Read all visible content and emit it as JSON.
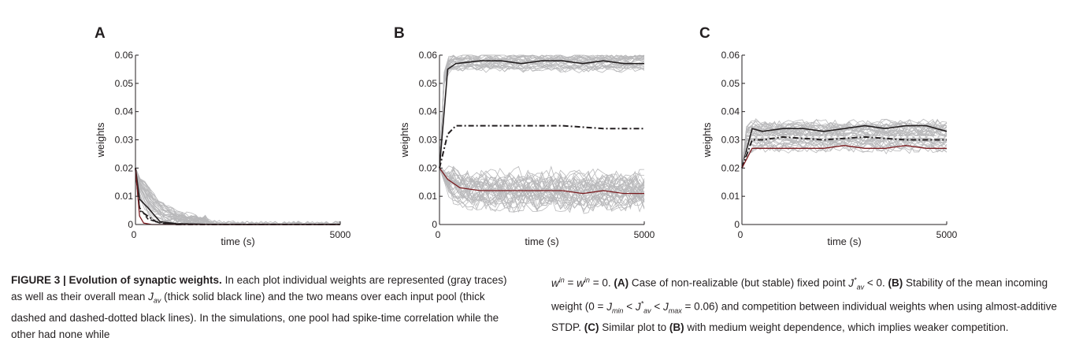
{
  "figure": {
    "caption_title": "FIGURE 3 | Evolution of synaptic weights.",
    "caption_p1": "In each plot individual weights are represented (gray traces) as well as their overall mean",
    "caption_p2": "(thick solid black line) and the two means over each input pool (thick dashed and dashed-dotted black lines). In the simulations, one pool had spike-time correlation while the other had none while",
    "caption_p3": "= 0.",
    "caption_A_tag": "(A)",
    "caption_A": "Case of non-realizable (but stable) fixed point",
    "caption_A_end": "< 0.",
    "caption_B_tag": "(B)",
    "caption_B": "Stability of the mean incoming weight (0 =",
    "caption_B2": "= 0.06) and competition between individual weights when using almost-additive STDP.",
    "caption_C_tag": "(C)",
    "caption_C": "Similar plot to",
    "caption_C_ref": "(B)",
    "caption_C2": "with medium weight dependence, which implies weaker competition."
  },
  "colors": {
    "gray": "#b9b9bb",
    "black": "#231f20",
    "red": "#7a1a1e"
  },
  "chart_data": [
    {
      "panel": "A",
      "type": "line",
      "xlabel": "time (s)",
      "ylabel": "weights",
      "xlim": [
        0,
        5000
      ],
      "ylim": [
        0,
        0.06
      ],
      "xticks": [
        "0",
        "5000"
      ],
      "yticks": [
        "0",
        "0.01",
        "0.02",
        "0.03",
        "0.04",
        "0.05",
        "0.06"
      ],
      "gray_traces": {
        "count": 30,
        "start": 0.02,
        "description": "individual weights decaying to 0"
      },
      "series": [
        {
          "style": "solid-black",
          "x": [
            0,
            100,
            300,
            600,
            1000,
            2000,
            5000
          ],
          "values": [
            0.02,
            0.009,
            0.006,
            0.001,
            0.0003,
            0.0,
            0.0
          ]
        },
        {
          "style": "dashed-black",
          "x": [
            0,
            100,
            300,
            600,
            1000,
            2000,
            5000
          ],
          "values": [
            0.02,
            0.006,
            0.002,
            0.0005,
            0.0,
            0.0,
            0.0
          ]
        },
        {
          "style": "dashdot-black",
          "x": [
            0,
            100,
            300,
            500,
            1000,
            5000
          ],
          "values": [
            0.02,
            0.005,
            0.003,
            0.001,
            0.0,
            0.0
          ]
        },
        {
          "style": "solid-red",
          "x": [
            0,
            100,
            200,
            400,
            5000
          ],
          "values": [
            0.02,
            0.003,
            0.0005,
            0.0,
            0.0
          ]
        }
      ]
    },
    {
      "panel": "B",
      "type": "line",
      "xlabel": "time (s)",
      "ylabel": "weights",
      "xlim": [
        0,
        5000
      ],
      "ylim": [
        0,
        0.06
      ],
      "xticks": [
        "0",
        "5000"
      ],
      "yticks": [
        "0",
        "0.01",
        "0.02",
        "0.03",
        "0.04",
        "0.05",
        "0.06"
      ],
      "gray_traces": {
        "count": 60,
        "description": "upper band ~0.055-0.06, lower band ~0.005-0.02"
      },
      "series": [
        {
          "style": "solid-black",
          "x": [
            0,
            200,
            400,
            1000,
            1500,
            2000,
            2500,
            3000,
            3500,
            4000,
            4500,
            5000
          ],
          "values": [
            0.02,
            0.055,
            0.057,
            0.058,
            0.058,
            0.057,
            0.058,
            0.058,
            0.057,
            0.058,
            0.057,
            0.057
          ]
        },
        {
          "style": "dashdot-black",
          "x": [
            0,
            200,
            400,
            1000,
            2000,
            3000,
            4000,
            5000
          ],
          "values": [
            0.02,
            0.032,
            0.035,
            0.035,
            0.035,
            0.035,
            0.034,
            0.034
          ]
        },
        {
          "style": "solid-red",
          "x": [
            0,
            200,
            500,
            1000,
            1500,
            2000,
            2500,
            3000,
            3500,
            4000,
            4500,
            5000
          ],
          "values": [
            0.02,
            0.016,
            0.013,
            0.012,
            0.012,
            0.012,
            0.012,
            0.012,
            0.011,
            0.012,
            0.011,
            0.011
          ]
        }
      ]
    },
    {
      "panel": "C",
      "type": "line",
      "xlabel": "time (s)",
      "ylabel": "weights",
      "xlim": [
        0,
        5000
      ],
      "ylim": [
        0,
        0.06
      ],
      "xticks": [
        "0",
        "5000"
      ],
      "yticks": [
        "0",
        "0.01",
        "0.02",
        "0.03",
        "0.04",
        "0.05",
        "0.06"
      ],
      "gray_traces": {
        "count": 40,
        "description": "individual weights in band ~0.025-0.038"
      },
      "series": [
        {
          "style": "solid-black",
          "x": [
            0,
            250,
            500,
            1000,
            1500,
            2000,
            2500,
            3000,
            3500,
            4000,
            4500,
            5000
          ],
          "values": [
            0.02,
            0.034,
            0.033,
            0.034,
            0.034,
            0.033,
            0.034,
            0.035,
            0.034,
            0.035,
            0.035,
            0.033
          ]
        },
        {
          "style": "dashed-white",
          "x": [
            0,
            250,
            500,
            1000,
            2000,
            3000,
            4000,
            5000
          ],
          "values": [
            0.02,
            0.031,
            0.031,
            0.031,
            0.031,
            0.031,
            0.031,
            0.031
          ]
        },
        {
          "style": "dashdot-black",
          "x": [
            0,
            250,
            500,
            1000,
            2000,
            3000,
            4000,
            5000
          ],
          "values": [
            0.02,
            0.03,
            0.03,
            0.031,
            0.03,
            0.031,
            0.03,
            0.03
          ]
        },
        {
          "style": "solid-red",
          "x": [
            0,
            250,
            500,
            1000,
            1500,
            2000,
            2500,
            3000,
            3500,
            4000,
            4500,
            5000
          ],
          "values": [
            0.02,
            0.027,
            0.027,
            0.027,
            0.027,
            0.027,
            0.028,
            0.027,
            0.027,
            0.028,
            0.027,
            0.027
          ]
        }
      ]
    }
  ]
}
